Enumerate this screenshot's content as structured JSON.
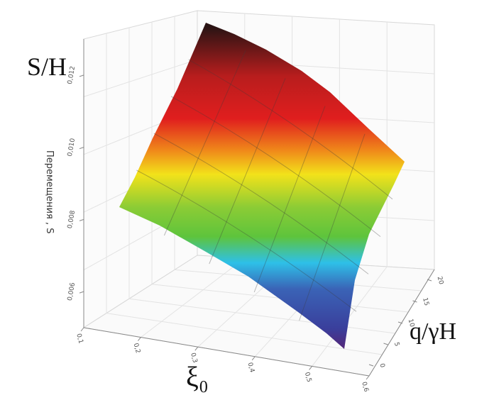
{
  "chart_data": {
    "type": "surface",
    "title": "",
    "zlabel_large": "S/H",
    "zlabel_axis": "Перемещения , S",
    "xlabel": "ξ₀",
    "ylabel": "q/γH",
    "x_ticks": [
      "0,1",
      "0,2",
      "0,3",
      "0,4",
      "0,5",
      "0,6"
    ],
    "y_ticks": [
      "0",
      "5",
      "10",
      "15",
      "20"
    ],
    "z_ticks": [
      "0,006",
      "0,008",
      "0,010",
      "0,012"
    ],
    "x_range": [
      0.1,
      0.6
    ],
    "y_range": [
      0,
      20
    ],
    "z_range": [
      0.005,
      0.013
    ],
    "grid": true,
    "colormap": [
      "#5b1f6e",
      "#3645a3",
      "#2ec0e8",
      "#6ec63a",
      "#f2e21a",
      "#f08c1a",
      "#e01e1e",
      "#d51c1c",
      "#2a1414"
    ],
    "corner_values": [
      {
        "x": 0.1,
        "y": 0,
        "z": 0.0094
      },
      {
        "x": 0.6,
        "y": 0,
        "z": 0.0053
      },
      {
        "x": 0.1,
        "y": 20,
        "z": 0.0132
      },
      {
        "x": 0.6,
        "y": 20,
        "z": 0.0104
      }
    ]
  }
}
